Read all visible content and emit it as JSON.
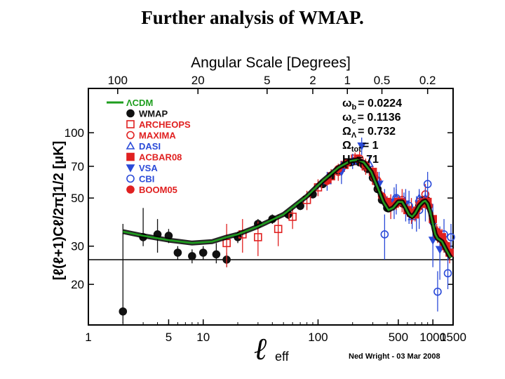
{
  "slide": {
    "title": "Further analysis of WMAP."
  },
  "chart_data": {
    "type": "scatter",
    "title": "Angular Scale [Degrees]",
    "xlabel": "ℓ",
    "xlabel_sub": "eff",
    "ylabel": "[ℓ(ℓ+1)Cℓ/2π]1/2 [μK]",
    "xscale": "log",
    "yscale": "log",
    "xlim": [
      1,
      1500
    ],
    "ylim": [
      13,
      160
    ],
    "bottom_ticks": [
      {
        "v": 1,
        "label": "1"
      },
      {
        "v": 5,
        "label": "5"
      },
      {
        "v": 10,
        "label": "10"
      },
      {
        "v": 100,
        "label": "100"
      },
      {
        "v": 500,
        "label": "500"
      },
      {
        "v": 1000,
        "label": "1000"
      },
      {
        "v": 1500,
        "label": "1500"
      }
    ],
    "top_ticks": [
      {
        "deg": 100,
        "label": "100"
      },
      {
        "deg": 20,
        "label": "20"
      },
      {
        "deg": 5,
        "label": "5"
      },
      {
        "deg": 2,
        "label": "2"
      },
      {
        "deg": 1,
        "label": "1"
      },
      {
        "deg": 0.5,
        "label": "0.5"
      },
      {
        "deg": 0.2,
        "label": "0.2"
      }
    ],
    "y_ticks": [
      {
        "v": 20,
        "label": "20"
      },
      {
        "v": 30,
        "label": "30"
      },
      {
        "v": 50,
        "label": "50"
      },
      {
        "v": 70,
        "label": "70"
      },
      {
        "v": 100,
        "label": "100"
      }
    ],
    "reference_line_y": 26,
    "model_curve": {
      "name": "ΛCDM",
      "color": "#1e9e1e",
      "points": [
        [
          2,
          35
        ],
        [
          3,
          33.5
        ],
        [
          5,
          32
        ],
        [
          8,
          31
        ],
        [
          12,
          31.5
        ],
        [
          16,
          33
        ],
        [
          20,
          34
        ],
        [
          30,
          37
        ],
        [
          50,
          42
        ],
        [
          80,
          51
        ],
        [
          110,
          60
        ],
        [
          150,
          69
        ],
        [
          190,
          74
        ],
        [
          220,
          75
        ],
        [
          250,
          73
        ],
        [
          290,
          66
        ],
        [
          330,
          56
        ],
        [
          370,
          48
        ],
        [
          410,
          44
        ],
        [
          450,
          45
        ],
        [
          500,
          48
        ],
        [
          540,
          48
        ],
        [
          580,
          45
        ],
        [
          620,
          42
        ],
        [
          660,
          41
        ],
        [
          700,
          42.5
        ],
        [
          760,
          46
        ],
        [
          820,
          48
        ],
        [
          860,
          48.5
        ],
        [
          900,
          47
        ],
        [
          950,
          43
        ],
        [
          1000,
          38
        ],
        [
          1050,
          34
        ],
        [
          1100,
          32.5
        ],
        [
          1150,
          32
        ],
        [
          1200,
          31.5
        ],
        [
          1300,
          29
        ],
        [
          1400,
          27
        ],
        [
          1500,
          26.5
        ]
      ]
    },
    "series": [
      {
        "name": "WMAP",
        "marker": "circle",
        "fill": "#111111",
        "stroke": "#111111",
        "errcolor": "#111111",
        "points": [
          [
            2,
            15,
            0.1,
            38
          ],
          [
            3,
            33,
            30,
            45
          ],
          [
            4,
            34,
            28,
            40
          ],
          [
            5,
            33.5,
            31,
            36
          ],
          [
            6,
            28,
            26,
            30
          ],
          [
            8,
            27,
            25,
            29
          ],
          [
            10,
            28,
            26,
            30
          ],
          [
            13,
            27.5,
            25,
            31
          ],
          [
            16,
            26,
            24,
            28
          ],
          [
            20,
            33,
            31,
            35
          ],
          [
            30,
            38,
            36,
            40
          ],
          [
            40,
            40,
            38,
            42
          ],
          [
            55,
            42,
            40,
            44
          ],
          [
            70,
            46,
            44,
            48
          ],
          [
            90,
            52,
            50,
            54
          ],
          [
            110,
            58,
            56,
            60
          ],
          [
            130,
            63,
            61,
            65
          ],
          [
            150,
            67,
            65,
            69
          ],
          [
            170,
            71,
            69,
            73
          ],
          [
            190,
            73,
            71,
            75
          ],
          [
            210,
            74,
            72,
            76
          ],
          [
            230,
            73,
            71,
            75
          ],
          [
            250,
            71,
            69,
            73
          ],
          [
            270,
            68,
            66,
            70
          ],
          [
            300,
            62,
            60,
            64
          ],
          [
            330,
            55,
            53,
            57
          ],
          [
            360,
            49,
            47,
            51
          ],
          [
            400,
            45,
            43,
            47
          ],
          [
            450,
            47,
            45,
            49
          ],
          [
            500,
            48,
            46,
            50
          ],
          [
            550,
            47,
            45,
            49
          ],
          [
            600,
            44,
            42,
            46
          ],
          [
            650,
            42,
            40,
            44
          ],
          [
            700,
            43,
            41,
            45
          ],
          [
            760,
            46,
            44,
            48
          ],
          [
            820,
            49,
            47,
            51
          ],
          [
            880,
            49,
            47,
            51
          ]
        ]
      },
      {
        "name": "ARCHEOPS",
        "marker": "square-open",
        "fill": "none",
        "stroke": "#e02020",
        "errcolor": "#e02020",
        "points": [
          [
            16,
            31,
            24,
            38
          ],
          [
            22,
            34,
            28,
            40
          ],
          [
            30,
            33,
            27,
            39
          ],
          [
            45,
            36,
            30,
            42
          ],
          [
            60,
            41,
            36,
            46
          ],
          [
            80,
            49,
            44,
            54
          ],
          [
            100,
            56,
            51,
            61
          ],
          [
            130,
            63,
            58,
            68
          ],
          [
            170,
            71,
            66,
            76
          ],
          [
            210,
            76,
            71,
            81
          ],
          [
            260,
            70,
            64,
            76
          ],
          [
            320,
            60,
            54,
            66
          ]
        ]
      },
      {
        "name": "MAXIMA",
        "marker": "circle-open",
        "fill": "none",
        "stroke": "#e02020",
        "errcolor": "#e02020",
        "points": [
          [
            150,
            66,
            60,
            72
          ],
          [
            230,
            76,
            70,
            82
          ],
          [
            330,
            60,
            54,
            66
          ],
          [
            430,
            46,
            40,
            52
          ],
          [
            540,
            49,
            43,
            55
          ],
          [
            650,
            44,
            38,
            50
          ],
          [
            760,
            48,
            42,
            54
          ],
          [
            860,
            52,
            46,
            58
          ]
        ]
      },
      {
        "name": "DASI",
        "marker": "triangle-open",
        "fill": "none",
        "stroke": "#2a4ad8",
        "errcolor": "#2a4ad8",
        "points": [
          [
            120,
            60,
            54,
            66
          ],
          [
            200,
            74,
            68,
            80
          ],
          [
            280,
            72,
            66,
            78
          ],
          [
            380,
            50,
            45,
            55
          ],
          [
            480,
            50,
            45,
            55
          ],
          [
            560,
            48,
            43,
            53
          ],
          [
            660,
            41,
            36,
            46
          ],
          [
            760,
            50,
            45,
            55
          ],
          [
            860,
            50,
            45,
            55
          ]
        ]
      },
      {
        "name": "ACBAR08",
        "marker": "square",
        "fill": "#e02020",
        "stroke": "#e02020",
        "errcolor": "#e02020",
        "points": [
          [
            300,
            66,
            62,
            70
          ],
          [
            400,
            48,
            45,
            51
          ],
          [
            500,
            48,
            45,
            51
          ],
          [
            600,
            44,
            41,
            47
          ],
          [
            700,
            42,
            39,
            45
          ],
          [
            800,
            47,
            44,
            50
          ],
          [
            900,
            48,
            45,
            51
          ],
          [
            1000,
            40,
            37,
            43
          ],
          [
            1100,
            34,
            31,
            37
          ],
          [
            1200,
            33,
            30,
            36
          ],
          [
            1300,
            30,
            27,
            33
          ],
          [
            1400,
            28,
            25,
            31
          ]
        ]
      },
      {
        "name": "VSA",
        "marker": "triangle-down",
        "fill": "#2a4ad8",
        "stroke": "#2a4ad8",
        "errcolor": "#2a4ad8",
        "points": [
          [
            160,
            66,
            58,
            74
          ],
          [
            240,
            87,
            79,
            95
          ],
          [
            340,
            58,
            50,
            66
          ],
          [
            460,
            48,
            40,
            56
          ],
          [
            580,
            47,
            39,
            55
          ],
          [
            720,
            43,
            35,
            51
          ],
          [
            860,
            47,
            39,
            55
          ],
          [
            1000,
            32,
            24,
            40
          ],
          [
            1150,
            29,
            21,
            37
          ]
        ]
      },
      {
        "name": "CBI",
        "marker": "circle-open",
        "fill": "none",
        "stroke": "#2a4ad8",
        "errcolor": "#2a4ad8",
        "points": [
          [
            380,
            34,
            26,
            42
          ],
          [
            480,
            50,
            42,
            58
          ],
          [
            620,
            46,
            38,
            54
          ],
          [
            760,
            44,
            36,
            52
          ],
          [
            900,
            58,
            50,
            66
          ],
          [
            1000,
            39,
            31,
            47
          ],
          [
            1100,
            18.5,
            15,
            23
          ],
          [
            1250,
            34,
            28,
            40
          ],
          [
            1350,
            22.5,
            19,
            27
          ],
          [
            1500,
            33,
            28,
            38
          ]
        ]
      },
      {
        "name": "BOOM05",
        "marker": "circle",
        "fill": "#e02020",
        "stroke": "#e02020",
        "errcolor": "#e02020",
        "points": [
          [
            120,
            60,
            57,
            63
          ],
          [
            150,
            68,
            65,
            71
          ],
          [
            180,
            73,
            70,
            76
          ],
          [
            220,
            76,
            73,
            79
          ],
          [
            260,
            71,
            68,
            74
          ],
          [
            310,
            62,
            59,
            65
          ],
          [
            360,
            51,
            48,
            54
          ],
          [
            420,
            46,
            43,
            49
          ],
          [
            480,
            47,
            44,
            50
          ],
          [
            540,
            48,
            45,
            51
          ],
          [
            600,
            44,
            41,
            47
          ],
          [
            660,
            42,
            39,
            45
          ],
          [
            720,
            44,
            41,
            47
          ],
          [
            780,
            47,
            44,
            50
          ],
          [
            840,
            48,
            45,
            51
          ],
          [
            920,
            46,
            43,
            49
          ],
          [
            1000,
            40,
            37,
            43
          ],
          [
            1080,
            35,
            32,
            38
          ],
          [
            1160,
            33,
            30,
            36
          ],
          [
            1250,
            31,
            28,
            34
          ]
        ]
      }
    ],
    "legend": {
      "entries": [
        "ΛCDM",
        "WMAP",
        "ARCHEOPS",
        "MAXIMA",
        "DASI",
        "ACBAR08",
        "VSA",
        "CBI",
        "BOOM05"
      ]
    },
    "parameters": {
      "omega_b": {
        "symbol": "ω",
        "sub": "b",
        "value": "= 0.0224"
      },
      "omega_c": {
        "symbol": "ω",
        "sub": "c",
        "value": "= 0.1136"
      },
      "Omega_lambda": {
        "symbol": "Ω",
        "sub": "Λ",
        "value": "= 0.732"
      },
      "Omega_tot": {
        "symbol": "Ω",
        "sub": "tot",
        "value": "= 1"
      },
      "H0": {
        "symbol": "H",
        "sub": "o",
        "value": "= 71"
      }
    },
    "credit": "Ned Wright - 03 Mar 2008"
  }
}
